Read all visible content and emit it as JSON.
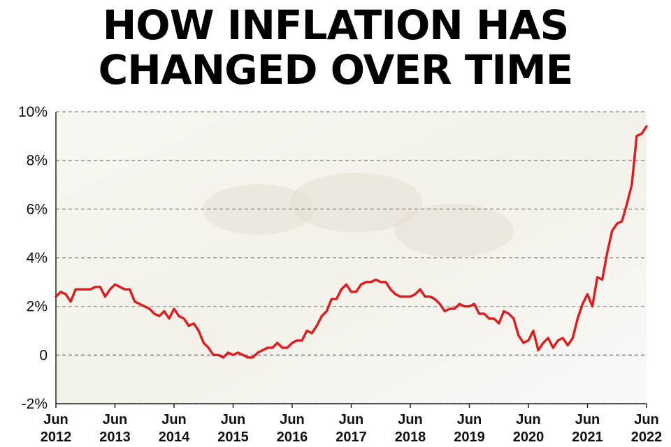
{
  "title_lines": [
    "HOW INFLATION HAS",
    "CHANGED OVER TIME"
  ],
  "colors": {
    "line": "#e01b1b",
    "grid": "#555555",
    "zero_line": "#444444",
    "axis": "#222222"
  },
  "chart_data": {
    "type": "line",
    "title": "HOW INFLATION HAS CHANGED OVER TIME",
    "xlabel": "",
    "ylabel": "",
    "ylim": [
      -2,
      10
    ],
    "xlim": [
      "2012-06",
      "2022-06"
    ],
    "grid": true,
    "y_ticks": [
      {
        "value": 10,
        "label": "10%"
      },
      {
        "value": 8,
        "label": "8%"
      },
      {
        "value": 6,
        "label": "6%"
      },
      {
        "value": 4,
        "label": "4%"
      },
      {
        "value": 2,
        "label": "2%"
      },
      {
        "value": 0,
        "label": "0"
      },
      {
        "value": -2,
        "label": "-2%"
      }
    ],
    "x_ticks": [
      {
        "date": "2012-06",
        "month": "Jun",
        "year": "2012"
      },
      {
        "date": "2013-06",
        "month": "Jun",
        "year": "2013"
      },
      {
        "date": "2014-06",
        "month": "Jun",
        "year": "2014"
      },
      {
        "date": "2015-06",
        "month": "Jun",
        "year": "2015"
      },
      {
        "date": "2016-06",
        "month": "Jun",
        "year": "2016"
      },
      {
        "date": "2017-06",
        "month": "Jun",
        "year": "2017"
      },
      {
        "date": "2018-06",
        "month": "Jun",
        "year": "2018"
      },
      {
        "date": "2019-06",
        "month": "Jun",
        "year": "2019"
      },
      {
        "date": "2020-06",
        "month": "Jun",
        "year": "2020"
      },
      {
        "date": "2021-06",
        "month": "Jun",
        "year": "2021"
      },
      {
        "date": "2022-06",
        "month": "Jun",
        "year": "2022"
      }
    ],
    "series": [
      {
        "x": [
          "2012-06",
          "2012-07",
          "2012-08",
          "2012-09",
          "2012-10",
          "2012-11",
          "2012-12",
          "2013-01",
          "2013-02",
          "2013-03",
          "2013-04",
          "2013-05",
          "2013-06",
          "2013-07",
          "2013-08",
          "2013-09",
          "2013-10",
          "2013-11",
          "2013-12",
          "2014-01",
          "2014-02",
          "2014-03",
          "2014-04",
          "2014-05",
          "2014-06",
          "2014-07",
          "2014-08",
          "2014-09",
          "2014-10",
          "2014-11",
          "2014-12",
          "2015-01",
          "2015-02",
          "2015-03",
          "2015-04",
          "2015-05",
          "2015-06",
          "2015-07",
          "2015-08",
          "2015-09",
          "2015-10",
          "2015-11",
          "2015-12",
          "2016-01",
          "2016-02",
          "2016-03",
          "2016-04",
          "2016-05",
          "2016-06",
          "2016-07",
          "2016-08",
          "2016-09",
          "2016-10",
          "2016-11",
          "2016-12",
          "2017-01",
          "2017-02",
          "2017-03",
          "2017-04",
          "2017-05",
          "2017-06",
          "2017-07",
          "2017-08",
          "2017-09",
          "2017-10",
          "2017-11",
          "2017-12",
          "2018-01",
          "2018-02",
          "2018-03",
          "2018-04",
          "2018-05",
          "2018-06",
          "2018-07",
          "2018-08",
          "2018-09",
          "2018-10",
          "2018-11",
          "2018-12",
          "2019-01",
          "2019-02",
          "2019-03",
          "2019-04",
          "2019-05",
          "2019-06",
          "2019-07",
          "2019-08",
          "2019-09",
          "2019-10",
          "2019-11",
          "2019-12",
          "2020-01",
          "2020-02",
          "2020-03",
          "2020-04",
          "2020-05",
          "2020-06",
          "2020-07",
          "2020-08",
          "2020-09",
          "2020-10",
          "2020-11",
          "2020-12",
          "2021-01",
          "2021-02",
          "2021-03",
          "2021-04",
          "2021-05",
          "2021-06",
          "2021-07",
          "2021-08",
          "2021-09",
          "2021-10",
          "2021-11",
          "2021-12",
          "2022-01",
          "2022-02",
          "2022-03",
          "2022-04",
          "2022-05",
          "2022-06"
        ],
        "values": [
          2.4,
          2.6,
          2.5,
          2.2,
          2.7,
          2.7,
          2.7,
          2.7,
          2.8,
          2.8,
          2.4,
          2.7,
          2.9,
          2.8,
          2.7,
          2.7,
          2.2,
          2.1,
          2.0,
          1.9,
          1.7,
          1.6,
          1.8,
          1.5,
          1.9,
          1.6,
          1.5,
          1.2,
          1.3,
          1.0,
          0.5,
          0.3,
          0.0,
          0.0,
          -0.1,
          0.1,
          0.0,
          0.1,
          0.0,
          -0.1,
          -0.1,
          0.1,
          0.2,
          0.3,
          0.3,
          0.5,
          0.3,
          0.3,
          0.5,
          0.6,
          0.6,
          1.0,
          0.9,
          1.2,
          1.6,
          1.8,
          2.3,
          2.3,
          2.7,
          2.9,
          2.6,
          2.6,
          2.9,
          3.0,
          3.0,
          3.1,
          3.0,
          3.0,
          2.7,
          2.5,
          2.4,
          2.4,
          2.4,
          2.5,
          2.7,
          2.4,
          2.4,
          2.3,
          2.1,
          1.8,
          1.9,
          1.9,
          2.1,
          2.0,
          2.0,
          2.1,
          1.7,
          1.7,
          1.5,
          1.5,
          1.3,
          1.8,
          1.7,
          1.5,
          0.8,
          0.5,
          0.6,
          1.0,
          0.2,
          0.5,
          0.7,
          0.3,
          0.6,
          0.7,
          0.4,
          0.7,
          1.5,
          2.1,
          2.5,
          2.0,
          3.2,
          3.1,
          4.2,
          5.1,
          5.4,
          5.5,
          6.2,
          7.0,
          9.0,
          9.1,
          9.4
        ]
      }
    ]
  }
}
